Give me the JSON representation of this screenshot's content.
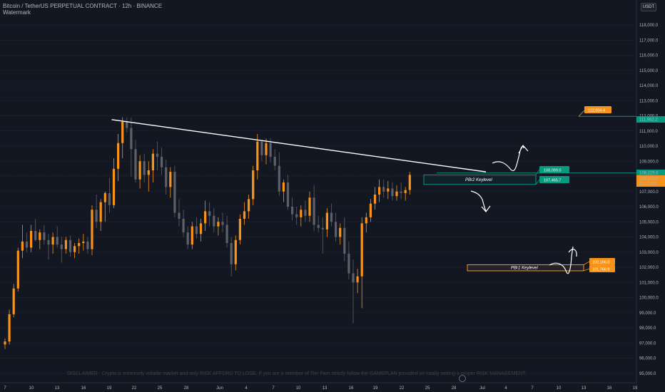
{
  "header": {
    "title": "Bitcoin / TetherUS PERPETUAL CONTRACT · 12h · BINANCE",
    "watermark": "Watermark",
    "currency": "USDT"
  },
  "disclaimer": "DISCLAIMER : Crypto is extremely volatile market and only RISK AFFORD TO LOSE. If you are a member of Tier Fam strictly follow the GAMEPLAN provided on totally setting a proper RISK MANAGEMENT.",
  "colors": {
    "background": "#131722",
    "bull": "#f7931a",
    "bear": "#5d606b",
    "teal": "#089981",
    "orange": "#f7931a",
    "trendline": "#ffffff"
  },
  "chart_data": {
    "type": "candlestick",
    "yticks": [
      95000,
      96000,
      97000,
      98000,
      99000,
      100000,
      101000,
      102000,
      103000,
      104000,
      105000,
      106000,
      107000,
      108000,
      109000,
      110000,
      111000,
      112000,
      113000,
      114000,
      115000,
      116000,
      117000,
      118000
    ],
    "ytick_labels": [
      "95,000.0",
      "96,000.0",
      "97,000.0",
      "98,000.0",
      "99,000.0",
      "100,000.0",
      "101,000.0",
      "102,000.0",
      "103,000.0",
      "104,000.0",
      "105,000.0",
      "106,000.0",
      "107,000.0",
      "108,000.0",
      "109,000.0",
      "110,000.0",
      "111,000.0",
      "112,000.0",
      "113,000.0",
      "114,000.0",
      "115,000.0",
      "116,000.0",
      "117,000.0",
      "118,000.0"
    ],
    "ylim": [
      95000,
      119000
    ],
    "xtick_labels": [
      "7",
      "10",
      "13",
      "16",
      "19",
      "22",
      "25",
      "28",
      "Jun",
      "4",
      "7",
      "10",
      "13",
      "16",
      "19",
      "22",
      "25",
      "28",
      "Jul",
      "4",
      "7",
      "10",
      "13",
      "16",
      "19"
    ],
    "current_price": "108,100.0",
    "countdown": "01:02:44",
    "candles": [
      [
        96900,
        97300,
        96600,
        97100
      ],
      [
        97100,
        99200,
        96900,
        98900
      ],
      [
        98900,
        100900,
        98700,
        100600
      ],
      [
        100600,
        103300,
        100400,
        103100
      ],
      [
        103100,
        104800,
        102600,
        103700
      ],
      [
        103700,
        104300,
        103000,
        103300
      ],
      [
        103300,
        104800,
        103000,
        104400
      ],
      [
        104400,
        105200,
        103700,
        103800
      ],
      [
        103800,
        104500,
        103200,
        104300
      ],
      [
        104300,
        104800,
        103500,
        103800
      ],
      [
        103800,
        104200,
        102500,
        103500
      ],
      [
        103500,
        104300,
        102900,
        104000
      ],
      [
        104000,
        104700,
        103300,
        103500
      ],
      [
        103500,
        104000,
        102300,
        103200
      ],
      [
        103200,
        104000,
        102900,
        103800
      ],
      [
        103800,
        104100,
        102700,
        103000
      ],
      [
        103000,
        103600,
        102600,
        103400
      ],
      [
        103400,
        103900,
        102900,
        103600
      ],
      [
        103600,
        104200,
        103100,
        103700
      ],
      [
        103700,
        104000,
        102900,
        103200
      ],
      [
        103200,
        106100,
        102800,
        105800
      ],
      [
        105800,
        106800,
        104600,
        105000
      ],
      [
        105000,
        106500,
        104400,
        106300
      ],
      [
        106300,
        107000,
        105000,
        106900
      ],
      [
        106900,
        107900,
        105600,
        106100
      ],
      [
        106100,
        109200,
        105900,
        108500
      ],
      [
        108500,
        110800,
        107700,
        110200
      ],
      [
        110200,
        111900,
        109200,
        111600
      ],
      [
        111600,
        111900,
        110900,
        111200
      ],
      [
        111200,
        111900,
        108000,
        109800
      ],
      [
        109800,
        110400,
        107600,
        107800
      ],
      [
        107800,
        109400,
        107200,
        109000
      ],
      [
        109000,
        109500,
        107600,
        108100
      ],
      [
        108100,
        109000,
        107000,
        108400
      ],
      [
        108400,
        109800,
        107600,
        109500
      ],
      [
        109500,
        110300,
        108400,
        109300
      ],
      [
        109300,
        109900,
        108100,
        108600
      ],
      [
        108600,
        109100,
        106800,
        107300
      ],
      [
        107300,
        108600,
        106600,
        108300
      ],
      [
        108300,
        108700,
        105300,
        105600
      ],
      [
        105600,
        106500,
        104700,
        105200
      ],
      [
        105200,
        105800,
        104000,
        104300
      ],
      [
        104300,
        104700,
        103200,
        103500
      ],
      [
        103500,
        105000,
        103200,
        104700
      ],
      [
        104700,
        105300,
        103900,
        104200
      ],
      [
        104200,
        105200,
        103700,
        104900
      ],
      [
        104900,
        106400,
        104400,
        105700
      ],
      [
        105700,
        106300,
        104700,
        105400
      ],
      [
        105400,
        105900,
        104300,
        104700
      ],
      [
        104700,
        105300,
        104100,
        105000
      ],
      [
        105000,
        105600,
        104300,
        104800
      ],
      [
        104800,
        105400,
        103300,
        103600
      ],
      [
        103600,
        104000,
        101400,
        102200
      ],
      [
        102200,
        104100,
        101800,
        103800
      ],
      [
        103800,
        105500,
        103500,
        105200
      ],
      [
        105200,
        106300,
        104800,
        105700
      ],
      [
        105700,
        106800,
        105200,
        106500
      ],
      [
        106500,
        108700,
        106100,
        108400
      ],
      [
        108400,
        110800,
        107800,
        110300
      ],
      [
        110300,
        110400,
        109000,
        109400
      ],
      [
        109400,
        110500,
        108800,
        110200
      ],
      [
        110200,
        110500,
        108900,
        109300
      ],
      [
        109300,
        109800,
        108400,
        108700
      ],
      [
        108700,
        109600,
        106700,
        107000
      ],
      [
        107000,
        107800,
        106300,
        107600
      ],
      [
        107600,
        108100,
        105800,
        106000
      ],
      [
        106000,
        106600,
        105100,
        105500
      ],
      [
        105500,
        106000,
        104800,
        105300
      ],
      [
        105300,
        106100,
        104700,
        105800
      ],
      [
        105800,
        106400,
        105000,
        105400
      ],
      [
        105400,
        107000,
        105000,
        106600
      ],
      [
        106600,
        107400,
        104400,
        104800
      ],
      [
        104800,
        105400,
        104300,
        104600
      ],
      [
        104600,
        105300,
        102900,
        104500
      ],
      [
        104500,
        105900,
        104000,
        105600
      ],
      [
        105600,
        106200,
        104700,
        105000
      ],
      [
        105000,
        105600,
        103700,
        104000
      ],
      [
        104000,
        104900,
        103500,
        104600
      ],
      [
        104600,
        105300,
        102400,
        102900
      ],
      [
        102900,
        103700,
        101200,
        101600
      ],
      [
        101600,
        102500,
        98300,
        101000
      ],
      [
        101000,
        101900,
        100300,
        101400
      ],
      [
        101400,
        105300,
        99300,
        104900
      ],
      [
        104900,
        105600,
        104300,
        105300
      ],
      [
        105300,
        106500,
        105000,
        106200
      ],
      [
        106200,
        107300,
        105800,
        106800
      ],
      [
        106800,
        107800,
        106300,
        107300
      ],
      [
        107300,
        107800,
        106600,
        107000
      ],
      [
        107000,
        107700,
        106500,
        107200
      ],
      [
        107200,
        107600,
        106400,
        106700
      ],
      [
        106700,
        107400,
        106400,
        107000
      ],
      [
        107000,
        107600,
        106500,
        106900
      ],
      [
        106900,
        107300,
        106400,
        107100
      ],
      [
        107100,
        108300,
        106800,
        108100
      ]
    ],
    "trendline": {
      "from": {
        "index": 24.5,
        "price": 111750
      },
      "to": {
        "index": 110.5,
        "price": 108300
      }
    },
    "annotations": {
      "pbr2_label": "PBr2 Keylevel",
      "pbr1_label": "PBr1 Keylevel",
      "teal_box_top": "108,099.0",
      "teal_box_bottom": "107,465.7",
      "orange_box_top": "102,166.0",
      "orange_box_bottom": "101,766.9",
      "target_tag": "112,004.4",
      "axis_teal_level": "111,962.2",
      "axis_teal_level2": "108,225.6"
    }
  }
}
